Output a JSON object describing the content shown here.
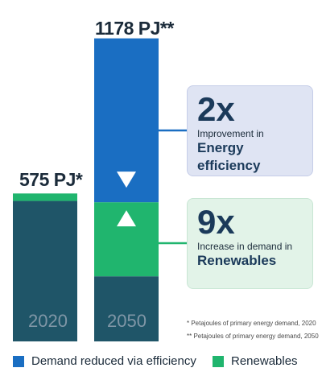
{
  "chart_data": {
    "type": "bar",
    "stacked": true,
    "categories": [
      "2020",
      "2050"
    ],
    "totals": [
      "575 PJ*",
      "1178 PJ**"
    ],
    "totals_values": [
      575,
      1178
    ],
    "series": [
      {
        "key": "base",
        "values": [
          546,
          253
        ],
        "color": "#1f5568"
      },
      {
        "name": "Renewables",
        "values": [
          29,
          288
        ],
        "color": "#20b56e"
      },
      {
        "name": "Demand reduced via efficiency",
        "values": [
          0,
          637
        ],
        "color": "#1a6ec2"
      }
    ],
    "ylim": [
      0,
      1180
    ]
  },
  "callouts": [
    {
      "big": "2x",
      "small": "Improvement in",
      "emph": "Energy efficiency",
      "bg": "#dfe4f3",
      "border": "#c5cde8",
      "connector": "#1a6ec2"
    },
    {
      "big": "9x",
      "small": "Increase in demand in",
      "emph": "Renewables",
      "bg": "#e2f3e8",
      "border": "#c8e6d4",
      "connector": "#20b56e"
    }
  ],
  "footnotes": [
    "* Petajoules of primary energy demand, 2020",
    "** Petajoules of primary energy demand, 2050"
  ],
  "legend": [
    {
      "label": "Demand reduced via efficiency",
      "color": "#1a6ec2"
    },
    {
      "label": "Renewables",
      "color": "#20b56e"
    }
  ],
  "colors": {
    "year_label": "#7f96a6",
    "arrow": "#ffffff"
  }
}
